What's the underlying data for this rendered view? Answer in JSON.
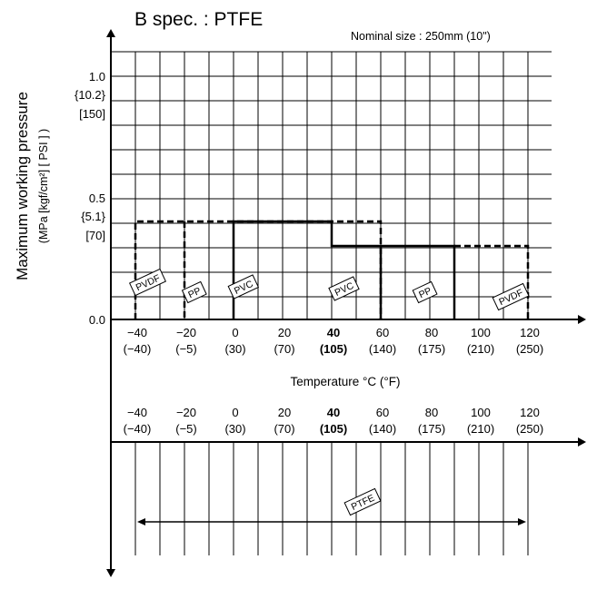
{
  "chart_data": [
    {
      "type": "step",
      "title": "B spec. : PTFE",
      "subtitle": "Nominal size : 250mm (10\")",
      "ylabel_main": "Maximum working pressure",
      "ylabel_units": "(MPa [kgf/cm²] [ PSI ] )",
      "xlabel": "Temperature °C (°F)",
      "x_ticks": [
        {
          "c": "−40",
          "f": "(−40)",
          "bold": false
        },
        {
          "c": "−20",
          "f": "(−5)",
          "bold": false
        },
        {
          "c": "0",
          "f": "(30)",
          "bold": false
        },
        {
          "c": "20",
          "f": "(70)",
          "bold": false
        },
        {
          "c": "40",
          "f": "(105)",
          "bold": true
        },
        {
          "c": "60",
          "f": "(140)",
          "bold": false
        },
        {
          "c": "80",
          "f": "(175)",
          "bold": false
        },
        {
          "c": "100",
          "f": "(210)",
          "bold": false
        },
        {
          "c": "120",
          "f": "(250)",
          "bold": false
        }
      ],
      "x_tick_values": [
        -40,
        -20,
        0,
        20,
        40,
        60,
        80,
        100,
        120
      ],
      "xlim": [
        -50,
        130
      ],
      "y_ticks": [
        {
          "value": 0.0,
          "labels": [
            "0.0"
          ]
        },
        {
          "value": 0.5,
          "labels": [
            "0.5",
            "{5.1}",
            "[70]"
          ]
        },
        {
          "value": 1.0,
          "labels": [
            "1.0",
            "{10.2}",
            "[150]"
          ]
        }
      ],
      "ylim": [
        0,
        1.1
      ],
      "series": [
        {
          "name": "PVDF",
          "x_range": [
            -40,
            -20
          ],
          "y": 0.4,
          "style": "dashed"
        },
        {
          "name": "PP",
          "x_range": [
            -20,
            0
          ],
          "y": 0.4,
          "style": "dashed"
        },
        {
          "name": "PVC",
          "x_range": [
            0,
            40
          ],
          "y": 0.4,
          "style": "solid"
        },
        {
          "name": "PVC",
          "x_range": [
            40,
            60
          ],
          "y": 0.3,
          "style": "solid"
        },
        {
          "name": "PP",
          "x_range": [
            60,
            90
          ],
          "y": 0.3,
          "style": "solid"
        },
        {
          "name": "PVDF",
          "x_range": [
            90,
            120
          ],
          "y": 0.3,
          "style": "dashed"
        }
      ],
      "extra_outline": [
        {
          "x_range": [
            0,
            60
          ],
          "y": 0.4,
          "style": "dashed"
        }
      ],
      "grid": true
    },
    {
      "type": "range",
      "x_ticks_same_as_above": true,
      "ranges": [
        {
          "name": "PTFE",
          "x_range": [
            -40,
            120
          ]
        }
      ],
      "grid": true
    }
  ]
}
